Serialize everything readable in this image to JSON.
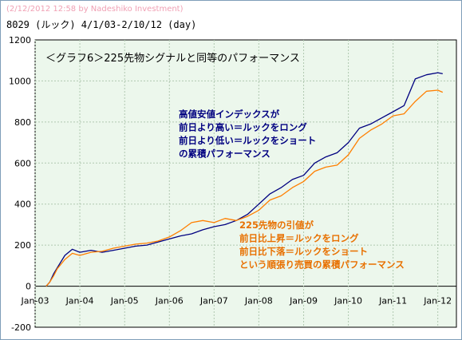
{
  "header": {
    "timestamp_line": "(2/12/2012 12:58 by Nadeshiko Investment)",
    "subtitle": "8029 (ルック) 4/1/03-2/10/12 (day)"
  },
  "colors": {
    "series_navy": "#000080",
    "series_orange": "#ff7f00",
    "plot_background": "#ecf7ec",
    "grid": "#b0c8b0",
    "annotation_navy": "#000080",
    "annotation_orange": "#e87000"
  },
  "chart_data": {
    "type": "line",
    "title": "＜グラフ6＞225先物シグナルと同等のパフォーマンス",
    "xlabel": "",
    "ylabel": "",
    "x_ticks": [
      "Jan-03",
      "Jan-04",
      "Jan-05",
      "Jan-06",
      "Jan-07",
      "Jan-08",
      "Jan-09",
      "Jan-10",
      "Jan-11",
      "Jan-12"
    ],
    "y_ticks": [
      1200,
      1000,
      800,
      600,
      400,
      200,
      0,
      -200
    ],
    "xlim": [
      "2003-01-01",
      "2012-06-01"
    ],
    "ylim": [
      -200,
      1200
    ],
    "grid": true,
    "annotations": [
      {
        "color": "navy",
        "lines": [
          "高値安値インデックスが",
          "前日より高い＝ルックをロング",
          "前日より低い＝ルックをショート",
          "の累積パフォーマンス"
        ]
      },
      {
        "color": "orange",
        "lines": [
          "225先物の引値が",
          "前日比上昇＝ルックをロング",
          "前日比下落＝ルックをショート",
          "という順張り売買の累積パフォーマンス"
        ]
      }
    ],
    "series": [
      {
        "color": "navy",
        "points": [
          [
            "2003-04-01",
            0
          ],
          [
            "2003-05-01",
            20
          ],
          [
            "2003-06-01",
            60
          ],
          [
            "2003-07-01",
            90
          ],
          [
            "2003-09-01",
            150
          ],
          [
            "2003-11-01",
            180
          ],
          [
            "2004-01-01",
            165
          ],
          [
            "2004-04-01",
            175
          ],
          [
            "2004-07-01",
            165
          ],
          [
            "2004-10-01",
            175
          ],
          [
            "2005-01-01",
            185
          ],
          [
            "2005-04-01",
            195
          ],
          [
            "2005-07-01",
            200
          ],
          [
            "2005-10-01",
            215
          ],
          [
            "2006-01-01",
            230
          ],
          [
            "2006-04-01",
            245
          ],
          [
            "2006-07-01",
            255
          ],
          [
            "2006-10-01",
            275
          ],
          [
            "2007-01-01",
            290
          ],
          [
            "2007-04-01",
            300
          ],
          [
            "2007-07-01",
            320
          ],
          [
            "2007-10-01",
            350
          ],
          [
            "2008-01-01",
            400
          ],
          [
            "2008-04-01",
            450
          ],
          [
            "2008-07-01",
            480
          ],
          [
            "2008-10-01",
            520
          ],
          [
            "2009-01-01",
            540
          ],
          [
            "2009-04-01",
            600
          ],
          [
            "2009-07-01",
            630
          ],
          [
            "2009-10-01",
            650
          ],
          [
            "2010-01-01",
            700
          ],
          [
            "2010-04-01",
            770
          ],
          [
            "2010-07-01",
            790
          ],
          [
            "2010-10-01",
            820
          ],
          [
            "2011-01-01",
            850
          ],
          [
            "2011-04-01",
            880
          ],
          [
            "2011-07-01",
            1010
          ],
          [
            "2011-10-01",
            1030
          ],
          [
            "2012-01-01",
            1040
          ],
          [
            "2012-02-10",
            1035
          ]
        ]
      },
      {
        "color": "orange",
        "points": [
          [
            "2003-04-01",
            0
          ],
          [
            "2003-05-01",
            20
          ],
          [
            "2003-06-01",
            50
          ],
          [
            "2003-07-01",
            85
          ],
          [
            "2003-09-01",
            130
          ],
          [
            "2003-11-01",
            160
          ],
          [
            "2004-01-01",
            150
          ],
          [
            "2004-04-01",
            165
          ],
          [
            "2004-07-01",
            170
          ],
          [
            "2004-10-01",
            185
          ],
          [
            "2005-01-01",
            195
          ],
          [
            "2005-04-01",
            205
          ],
          [
            "2005-07-01",
            210
          ],
          [
            "2005-10-01",
            220
          ],
          [
            "2006-01-01",
            240
          ],
          [
            "2006-04-01",
            270
          ],
          [
            "2006-07-01",
            310
          ],
          [
            "2006-10-01",
            320
          ],
          [
            "2007-01-01",
            310
          ],
          [
            "2007-04-01",
            330
          ],
          [
            "2007-07-01",
            320
          ],
          [
            "2007-10-01",
            340
          ],
          [
            "2008-01-01",
            370
          ],
          [
            "2008-04-01",
            420
          ],
          [
            "2008-07-01",
            440
          ],
          [
            "2008-10-01",
            480
          ],
          [
            "2009-01-01",
            510
          ],
          [
            "2009-04-01",
            560
          ],
          [
            "2009-07-01",
            580
          ],
          [
            "2009-10-01",
            590
          ],
          [
            "2010-01-01",
            640
          ],
          [
            "2010-04-01",
            720
          ],
          [
            "2010-07-01",
            760
          ],
          [
            "2010-10-01",
            790
          ],
          [
            "2011-01-01",
            830
          ],
          [
            "2011-04-01",
            840
          ],
          [
            "2011-07-01",
            900
          ],
          [
            "2011-10-01",
            950
          ],
          [
            "2012-01-01",
            955
          ],
          [
            "2012-02-10",
            945
          ]
        ]
      }
    ]
  }
}
